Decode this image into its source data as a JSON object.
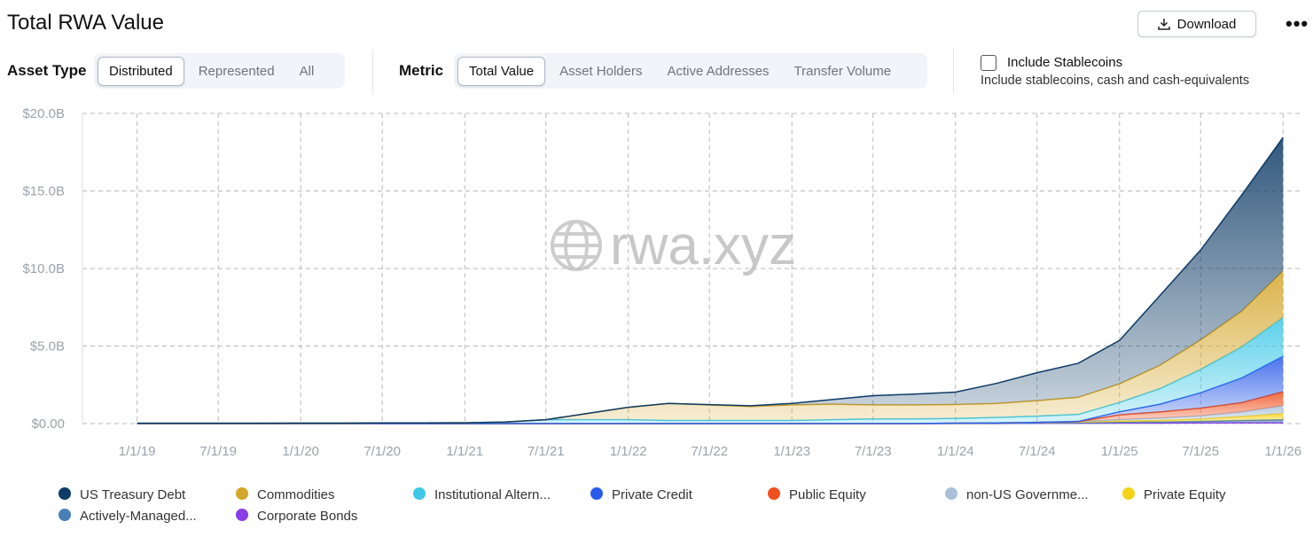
{
  "header": {
    "title": "Total RWA Value",
    "download": "Download",
    "more": "•••"
  },
  "filters": {
    "asset_type_label": "Asset Type",
    "asset_types": [
      "Distributed",
      "Represented",
      "All"
    ],
    "metric_label": "Metric",
    "metrics": [
      "Total Value",
      "Asset Holders",
      "Active Addresses",
      "Transfer Volume"
    ],
    "stablecoins_label": "Include Stablecoins",
    "stablecoins_hint": "Include stablecoins, cash and cash-equivalents"
  },
  "chart_data": {
    "type": "stacked_area",
    "watermark": "rwa.xyz",
    "grid": true,
    "xlim": [
      "9/1/18",
      "2/15/26"
    ],
    "xticks": [
      "1/1/19",
      "7/1/19",
      "1/1/20",
      "7/1/20",
      "1/1/21",
      "7/1/21",
      "1/1/22",
      "7/1/22",
      "1/1/23",
      "7/1/23",
      "1/1/24",
      "7/1/24",
      "1/1/25",
      "7/1/25",
      "1/1/26"
    ],
    "ylim": [
      0,
      20
    ],
    "yticks": [
      {
        "value": 0,
        "label": "$0.00"
      },
      {
        "value": 5,
        "label": "$5.0B"
      },
      {
        "value": 10,
        "label": "$10.0B"
      },
      {
        "value": 15,
        "label": "$15.0B"
      },
      {
        "value": 20,
        "label": "$20.0B"
      }
    ],
    "x": [
      "1/1/19",
      "4/1/19",
      "7/1/19",
      "10/1/19",
      "1/1/20",
      "4/1/20",
      "7/1/20",
      "10/1/20",
      "1/1/21",
      "4/1/21",
      "7/1/21",
      "10/1/21",
      "1/1/22",
      "4/1/22",
      "7/1/22",
      "10/1/22",
      "1/1/23",
      "4/1/23",
      "7/1/23",
      "10/1/23",
      "1/1/24",
      "4/1/24",
      "7/1/24",
      "10/1/24",
      "1/1/25",
      "4/1/25",
      "7/1/25",
      "10/1/25",
      "1/1/26"
    ],
    "series": [
      {
        "name": "US Treasury Debt",
        "color": "#0d3b66",
        "values": [
          0,
          0,
          0,
          0,
          0,
          0,
          0,
          0,
          0,
          0,
          0,
          0,
          0,
          0,
          0.02,
          0.05,
          0.1,
          0.3,
          0.6,
          0.7,
          0.8,
          1.3,
          1.8,
          2.2,
          2.8,
          4.5,
          5.8,
          7.5,
          8.6
        ]
      },
      {
        "name": "Commodities",
        "color": "#d4a62a",
        "values": [
          0,
          0,
          0,
          0,
          0,
          0,
          0,
          0,
          0,
          0,
          0,
          0.4,
          0.8,
          1.1,
          1.0,
          0.9,
          1.0,
          1.0,
          0.9,
          0.9,
          0.9,
          0.9,
          1.0,
          1.1,
          1.2,
          1.5,
          1.9,
          2.3,
          3.0
        ]
      },
      {
        "name": "Institutional Altern...",
        "color": "#3ec8e6",
        "values": [
          0.02,
          0.02,
          0.02,
          0.02,
          0.03,
          0.03,
          0.04,
          0.04,
          0.05,
          0.1,
          0.25,
          0.25,
          0.25,
          0.2,
          0.2,
          0.2,
          0.2,
          0.25,
          0.3,
          0.3,
          0.3,
          0.35,
          0.4,
          0.45,
          0.6,
          1.0,
          1.5,
          2.0,
          2.5
        ]
      },
      {
        "name": "Private Credit",
        "color": "#2a5bea",
        "values": [
          0,
          0,
          0,
          0,
          0,
          0,
          0,
          0,
          0,
          0,
          0,
          0,
          0,
          0,
          0,
          0,
          0,
          0,
          0,
          0,
          0,
          0,
          0,
          0.02,
          0.2,
          0.5,
          1.0,
          1.6,
          2.3
        ]
      },
      {
        "name": "Public Equity",
        "color": "#f0501e",
        "values": [
          0,
          0,
          0,
          0,
          0,
          0,
          0,
          0,
          0,
          0,
          0,
          0,
          0,
          0,
          0,
          0,
          0,
          0,
          0,
          0,
          0,
          0,
          0,
          0,
          0.3,
          0.4,
          0.5,
          0.6,
          0.9
        ]
      },
      {
        "name": "non-US Governme...",
        "color": "#a9c0d8",
        "values": [
          0,
          0,
          0,
          0,
          0,
          0,
          0,
          0,
          0,
          0,
          0,
          0,
          0,
          0,
          0,
          0,
          0,
          0,
          0,
          0,
          0,
          0,
          0,
          0.02,
          0.1,
          0.15,
          0.2,
          0.3,
          0.5
        ]
      },
      {
        "name": "Private Equity",
        "color": "#f5d21a",
        "values": [
          0,
          0,
          0,
          0,
          0,
          0,
          0,
          0,
          0,
          0,
          0,
          0,
          0,
          0,
          0,
          0,
          0,
          0,
          0,
          0,
          0.02,
          0.03,
          0.04,
          0.05,
          0.08,
          0.1,
          0.15,
          0.25,
          0.4
        ]
      },
      {
        "name": "Actively-Managed...",
        "color": "#4a7fb5",
        "values": [
          0,
          0,
          0,
          0,
          0,
          0,
          0,
          0,
          0,
          0,
          0,
          0,
          0,
          0,
          0,
          0,
          0,
          0,
          0,
          0,
          0,
          0,
          0.02,
          0.03,
          0.05,
          0.07,
          0.1,
          0.15,
          0.2
        ]
      },
      {
        "name": "Corporate Bonds",
        "color": "#8a3ee6",
        "values": [
          0,
          0,
          0,
          0,
          0,
          0,
          0,
          0,
          0,
          0,
          0,
          0,
          0,
          0,
          0,
          0,
          0,
          0,
          0,
          0,
          0.01,
          0.01,
          0.02,
          0.02,
          0.03,
          0.03,
          0.04,
          0.05,
          0.05
        ]
      }
    ]
  }
}
